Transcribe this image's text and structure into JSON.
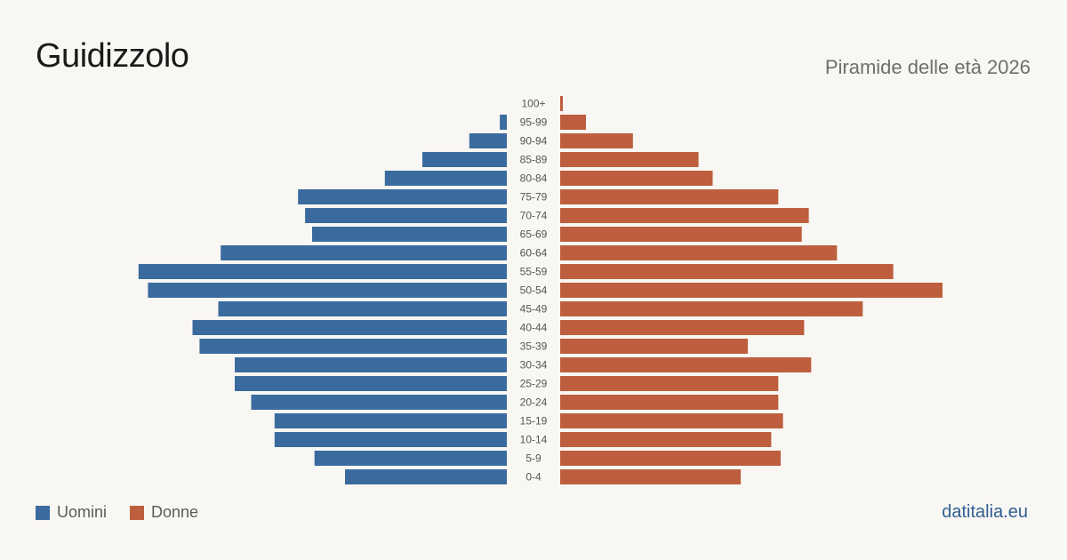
{
  "header": {
    "title": "Guidizzolo",
    "subtitle": "Piramide delle età 2026"
  },
  "footer": {
    "source": "datitalia.eu"
  },
  "legend": {
    "men_label": "Uomini",
    "women_label": "Donne"
  },
  "colors": {
    "men": "#3b6b9e",
    "women": "#bd5f3e",
    "tick_label": "#555555"
  },
  "chart_data": {
    "type": "bar",
    "orientation": "horizontal-pyramid",
    "categories": [
      "100+",
      "95-99",
      "90-94",
      "85-89",
      "80-84",
      "75-79",
      "70-74",
      "65-69",
      "60-64",
      "55-59",
      "50-54",
      "45-49",
      "40-44",
      "35-39",
      "30-34",
      "25-29",
      "20-24",
      "15-19",
      "10-14",
      "5-9",
      "0-4"
    ],
    "series": [
      {
        "name": "Uomini",
        "values": [
          0,
          3,
          16,
          36,
          52,
          89,
          86,
          83,
          122,
          157,
          153,
          123,
          134,
          131,
          116,
          116,
          109,
          99,
          99,
          82,
          69
        ]
      },
      {
        "name": "Donne",
        "values": [
          1,
          11,
          31,
          59,
          65,
          93,
          106,
          103,
          118,
          142,
          163,
          129,
          104,
          80,
          107,
          93,
          93,
          95,
          90,
          94,
          77
        ]
      }
    ],
    "xlim": [
      0,
      163
    ],
    "grid": false,
    "legend_position": "bottom-left"
  }
}
